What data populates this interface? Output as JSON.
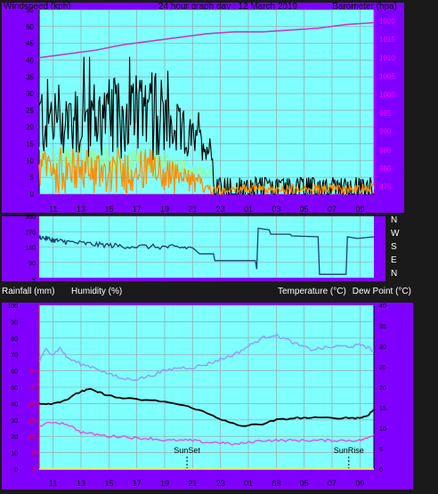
{
  "header": {
    "left": "Windspeed (kph)",
    "center": "24 hour graph day : 12 March 2019",
    "right": "Barometer (hpa)"
  },
  "mid_labels": {
    "rain": "Rainfall (mm)",
    "humidity": "Humidity (%)",
    "temp": "Temperature (°C)",
    "dew": "Dew Point (°C)"
  },
  "markers": {
    "sunset": "SunSet",
    "sunrise": "SunRise"
  },
  "colors": {
    "purple": "#8000ff",
    "plot_bg": "#80ffff",
    "wind_avg": "#ff8c00",
    "wind_gust": "#000000",
    "wind_light": "#90ff90",
    "baro": "#c040c0",
    "dir": "#1a4070",
    "humidity": "#8a9cff",
    "temp": "#000000",
    "dew": "#e050e0",
    "red_axis": "#ff0000",
    "magenta_axis": "#ff00ff"
  },
  "chart_data": [
    {
      "type": "line",
      "name": "wind",
      "x_ticks": [
        "11",
        "13",
        "15",
        "17",
        "19",
        "21",
        "23",
        "01",
        "03",
        "05",
        "07",
        "09"
      ],
      "left_axis_ticks": [
        "0",
        "5",
        "10",
        "15",
        "20",
        "25",
        "30",
        "35",
        "40",
        "45",
        "50",
        "55"
      ],
      "right_axis_ticks": [
        "975",
        "980",
        "985",
        "990",
        "995",
        "1000",
        "1005",
        "1010",
        "1015",
        "1020"
      ],
      "left_ylim": [
        0,
        55
      ],
      "right_ylim": [
        973,
        1023
      ],
      "series_hint": {
        "gust_peak": 41,
        "gust_typical_early": [
          10,
          37
        ],
        "avg_typical_early": [
          0,
          16
        ],
        "light_band_early": [
          5,
          16
        ],
        "late_level": [
          0,
          6
        ]
      },
      "barometer": [
        {
          "t": 0,
          "v": 1010
        },
        {
          "t": 2,
          "v": 1011
        },
        {
          "t": 4,
          "v": 1012
        },
        {
          "t": 6,
          "v": 1013.5
        },
        {
          "t": 8,
          "v": 1014.5
        },
        {
          "t": 10,
          "v": 1015.5
        },
        {
          "t": 12,
          "v": 1016.5
        },
        {
          "t": 14,
          "v": 1017
        },
        {
          "t": 16,
          "v": 1017
        },
        {
          "t": 18,
          "v": 1017.5
        },
        {
          "t": 20,
          "v": 1018
        },
        {
          "t": 22,
          "v": 1019
        },
        {
          "t": 24,
          "v": 1019.5
        }
      ]
    },
    {
      "type": "line",
      "name": "direction",
      "right_labels": [
        "N",
        "W",
        "S",
        "E",
        "N"
      ],
      "left_axis_ticks": [
        "360",
        "270",
        "180",
        "90",
        "0"
      ],
      "ylim": [
        0,
        360
      ],
      "points": [
        {
          "t": 0,
          "v": 240
        },
        {
          "t": 1,
          "v": 220
        },
        {
          "t": 2,
          "v": 210
        },
        {
          "t": 4,
          "v": 195
        },
        {
          "t": 6,
          "v": 185
        },
        {
          "t": 9,
          "v": 180
        },
        {
          "t": 11,
          "v": 175
        },
        {
          "t": 11.5,
          "v": 140
        },
        {
          "t": 12.5,
          "v": 140
        },
        {
          "t": 12.6,
          "v": 100
        },
        {
          "t": 15.5,
          "v": 100
        },
        {
          "t": 15.6,
          "v": 50
        },
        {
          "t": 15.7,
          "v": 290
        },
        {
          "t": 16.5,
          "v": 280
        },
        {
          "t": 16.6,
          "v": 255
        },
        {
          "t": 18.0,
          "v": 255
        },
        {
          "t": 18.1,
          "v": 245
        },
        {
          "t": 20.0,
          "v": 240
        },
        {
          "t": 20.1,
          "v": 20
        },
        {
          "t": 22.0,
          "v": 20
        },
        {
          "t": 22.1,
          "v": 240
        },
        {
          "t": 22.8,
          "v": 230
        },
        {
          "t": 24,
          "v": 240
        }
      ]
    },
    {
      "type": "line",
      "name": "climate",
      "x_ticks": [
        "11",
        "13",
        "15",
        "17",
        "19",
        "21",
        "23",
        "01",
        "03",
        "05",
        "07",
        "09"
      ],
      "left_axis_ticks": [
        "0",
        "10",
        "20",
        "30",
        "40",
        "50",
        "60",
        "70",
        "80",
        "90",
        "100"
      ],
      "red_axis_ticks": [
        "0",
        "5",
        "10",
        "15",
        "20",
        "25",
        "30"
      ],
      "right_axis_ticks": [
        "0",
        "5",
        "10",
        "15",
        "20",
        "25",
        "30",
        "35",
        "40"
      ],
      "humidity": [
        {
          "t": 0,
          "v": 66
        },
        {
          "t": 0.5,
          "v": 73
        },
        {
          "t": 1,
          "v": 70
        },
        {
          "t": 1.5,
          "v": 74
        },
        {
          "t": 2,
          "v": 68
        },
        {
          "t": 3,
          "v": 64
        },
        {
          "t": 4,
          "v": 62
        },
        {
          "t": 5,
          "v": 58
        },
        {
          "t": 6,
          "v": 55
        },
        {
          "t": 7,
          "v": 55
        },
        {
          "t": 8,
          "v": 57
        },
        {
          "t": 9,
          "v": 60
        },
        {
          "t": 10,
          "v": 62
        },
        {
          "t": 11,
          "v": 62
        },
        {
          "t": 12,
          "v": 64
        },
        {
          "t": 13,
          "v": 67
        },
        {
          "t": 14,
          "v": 70
        },
        {
          "t": 15,
          "v": 75
        },
        {
          "t": 16,
          "v": 80
        },
        {
          "t": 16.8,
          "v": 82
        },
        {
          "t": 17.5,
          "v": 80
        },
        {
          "t": 18.5,
          "v": 76
        },
        {
          "t": 19.5,
          "v": 73
        },
        {
          "t": 20.5,
          "v": 74
        },
        {
          "t": 21.5,
          "v": 75
        },
        {
          "t": 22.5,
          "v": 75
        },
        {
          "t": 23.2,
          "v": 76
        },
        {
          "t": 24,
          "v": 72
        }
      ],
      "temperature": [
        {
          "t": 0,
          "v": 16
        },
        {
          "t": 1,
          "v": 16
        },
        {
          "t": 2,
          "v": 17
        },
        {
          "t": 3,
          "v": 19
        },
        {
          "t": 3.6,
          "v": 19.5
        },
        {
          "t": 4.5,
          "v": 18.5
        },
        {
          "t": 5.5,
          "v": 17.5
        },
        {
          "t": 7,
          "v": 17
        },
        {
          "t": 9,
          "v": 16.5
        },
        {
          "t": 11,
          "v": 15
        },
        {
          "t": 12.5,
          "v": 13
        },
        {
          "t": 13.5,
          "v": 11.5
        },
        {
          "t": 14.5,
          "v": 10.5
        },
        {
          "t": 16,
          "v": 11
        },
        {
          "t": 17,
          "v": 12
        },
        {
          "t": 18.5,
          "v": 12.5
        },
        {
          "t": 20,
          "v": 12.5
        },
        {
          "t": 22,
          "v": 12.5
        },
        {
          "t": 23,
          "v": 12.5
        },
        {
          "t": 23.5,
          "v": 13
        },
        {
          "t": 24,
          "v": 14.5
        }
      ],
      "dew_point": [
        {
          "t": 0,
          "v": 10.5
        },
        {
          "t": 1,
          "v": 11.5
        },
        {
          "t": 2,
          "v": 11
        },
        {
          "t": 3,
          "v": 9
        },
        {
          "t": 4,
          "v": 8.5
        },
        {
          "t": 5,
          "v": 8
        },
        {
          "t": 6,
          "v": 8
        },
        {
          "t": 7,
          "v": 7.5
        },
        {
          "t": 8,
          "v": 7.5
        },
        {
          "t": 9,
          "v": 7
        },
        {
          "t": 10,
          "v": 7
        },
        {
          "t": 11,
          "v": 7
        },
        {
          "t": 12,
          "v": 6.5
        },
        {
          "t": 13,
          "v": 6.5
        },
        {
          "t": 14,
          "v": 6
        },
        {
          "t": 15,
          "v": 6.5
        },
        {
          "t": 16,
          "v": 7
        },
        {
          "t": 17,
          "v": 7
        },
        {
          "t": 18,
          "v": 7
        },
        {
          "t": 19,
          "v": 7
        },
        {
          "t": 20,
          "v": 7
        },
        {
          "t": 21,
          "v": 7
        },
        {
          "t": 22,
          "v": 7
        },
        {
          "t": 23,
          "v": 7
        },
        {
          "t": 23.5,
          "v": 7.5
        },
        {
          "t": 24,
          "v": 8.5
        }
      ],
      "rainfall": [
        {
          "t": 0,
          "v": 0
        },
        {
          "t": 24,
          "v": 0
        }
      ],
      "sunset_t": 10.6,
      "sunrise_t": 22.2
    }
  ]
}
